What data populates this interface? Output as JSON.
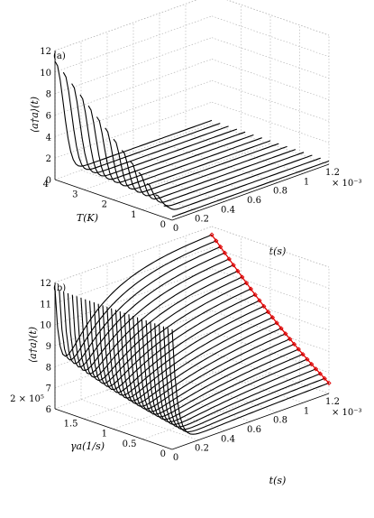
{
  "chart_data": [
    {
      "type": "line",
      "panel_label": "(a)",
      "zlabel": "⟨a†a⟩(t)",
      "xlabel": "t(s)",
      "x_exponent": "× 10⁻³",
      "ylabel": "T(K)",
      "x_ticks": [
        "0",
        "0.2",
        "0.4",
        "0.6",
        "0.8",
        "1",
        "1.2"
      ],
      "y_ticks": [
        "0",
        "1",
        "2",
        "3",
        "4"
      ],
      "z_ticks": [
        "0",
        "2",
        "4",
        "6",
        "8",
        "10",
        "12"
      ],
      "xlim": [
        0,
        0.0012
      ],
      "ylim": [
        0,
        4
      ],
      "zlim": [
        0,
        12
      ],
      "grid": true,
      "series_count": 15,
      "description_values": {
        "param_start": 4,
        "param_end": 0,
        "initial_value_at_T4": 11,
        "initial_value_at_T0": 0.3,
        "steady_value": 0.3,
        "decay_time_s": 0.00012
      }
    },
    {
      "type": "line",
      "panel_label": "(b)",
      "zlabel": "⟨a†a⟩(t)",
      "xlabel": "t(s)",
      "x_exponent": "× 10⁻³",
      "ylabel": "γa(1/s)",
      "y_exponent": "2 × 10⁵",
      "x_ticks": [
        "0",
        "0.2",
        "0.4",
        "0.6",
        "0.8",
        "1",
        "1.2"
      ],
      "y_ticks": [
        "0",
        "0.5",
        "1",
        "1.5"
      ],
      "z_ticks": [
        "6",
        "7",
        "8",
        "9",
        "10",
        "11",
        "12"
      ],
      "xlim": [
        0,
        0.0012
      ],
      "ylim": [
        0,
        200000
      ],
      "zlim": [
        6,
        12
      ],
      "grid": true,
      "series_count": 28,
      "highlight_color": "#e00000",
      "description_values": {
        "initial_value": 11.7,
        "min_value": 6.3,
        "final_value_at_gamma_max": 11.7,
        "final_value_at_gamma_min": 6.6
      }
    }
  ]
}
